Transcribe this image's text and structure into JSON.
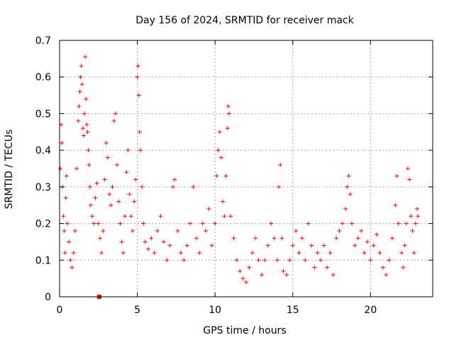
{
  "chart_data": {
    "type": "scatter",
    "title": "Day 156 of 2024, SRMTID for receiver mack",
    "xlabel": "GPS time / hours",
    "ylabel": "SRMTID / TECUs",
    "xlim": [
      0,
      24
    ],
    "ylim": [
      0,
      0.7
    ],
    "xticks": [
      0,
      5,
      10,
      15,
      20
    ],
    "xtick_labels": [
      "0",
      "5",
      "10",
      "15",
      "20"
    ],
    "yticks": [
      0,
      0.1,
      0.2,
      0.3,
      0.4,
      0.5,
      0.6,
      0.7
    ],
    "ytick_labels": [
      "0",
      "0.1",
      "0.2",
      "0.3",
      "0.4",
      "0.5",
      "0.6",
      "0.7"
    ],
    "grid": true,
    "marker": "plus",
    "color": "#ff0000",
    "series": [
      {
        "name": "SRMTID",
        "points": [
          [
            0.05,
            0.35
          ],
          [
            0.1,
            0.47
          ],
          [
            0.15,
            0.42
          ],
          [
            0.2,
            0.3
          ],
          [
            0.25,
            0.22
          ],
          [
            0.3,
            0.18
          ],
          [
            0.35,
            0.12
          ],
          [
            0.4,
            0.27
          ],
          [
            0.45,
            0.33
          ],
          [
            0.5,
            0.2
          ],
          [
            0.6,
            0.15
          ],
          [
            0.7,
            0.1
          ],
          [
            0.8,
            0.08
          ],
          [
            0.9,
            0.12
          ],
          [
            1.0,
            0.18
          ],
          [
            1.1,
            0.35
          ],
          [
            1.2,
            0.48
          ],
          [
            1.25,
            0.52
          ],
          [
            1.3,
            0.56
          ],
          [
            1.35,
            0.6
          ],
          [
            1.4,
            0.63
          ],
          [
            1.45,
            0.58
          ],
          [
            1.5,
            0.46
          ],
          [
            1.55,
            0.44
          ],
          [
            1.6,
            0.5
          ],
          [
            1.65,
            0.655
          ],
          [
            1.7,
            0.54
          ],
          [
            1.75,
            0.47
          ],
          [
            1.8,
            0.45
          ],
          [
            1.85,
            0.4
          ],
          [
            1.9,
            0.36
          ],
          [
            1.95,
            0.3
          ],
          [
            2.0,
            0.25
          ],
          [
            2.1,
            0.22
          ],
          [
            2.2,
            0.2
          ],
          [
            2.3,
            0.27
          ],
          [
            2.4,
            0.31
          ],
          [
            2.5,
            0.2
          ],
          [
            2.6,
            0.16
          ],
          [
            2.7,
            0.12
          ],
          [
            2.8,
            0.18
          ],
          [
            2.9,
            0.32
          ],
          [
            3.0,
            0.42
          ],
          [
            3.1,
            0.38
          ],
          [
            3.2,
            0.28
          ],
          [
            3.3,
            0.25
          ],
          [
            3.4,
            0.3
          ],
          [
            3.5,
            0.48
          ],
          [
            3.6,
            0.5
          ],
          [
            3.7,
            0.36
          ],
          [
            3.8,
            0.26
          ],
          [
            3.9,
            0.2
          ],
          [
            4.0,
            0.15
          ],
          [
            4.1,
            0.12
          ],
          [
            4.2,
            0.22
          ],
          [
            4.3,
            0.34
          ],
          [
            4.4,
            0.4
          ],
          [
            4.5,
            0.28
          ],
          [
            4.6,
            0.22
          ],
          [
            4.7,
            0.18
          ],
          [
            4.8,
            0.26
          ],
          [
            4.9,
            0.32
          ],
          [
            5.0,
            0.6
          ],
          [
            5.05,
            0.63
          ],
          [
            5.1,
            0.55
          ],
          [
            5.15,
            0.45
          ],
          [
            5.2,
            0.4
          ],
          [
            5.3,
            0.3
          ],
          [
            5.4,
            0.2
          ],
          [
            5.5,
            0.15
          ],
          [
            5.7,
            0.13
          ],
          [
            5.9,
            0.16
          ],
          [
            6.1,
            0.12
          ],
          [
            6.3,
            0.18
          ],
          [
            6.5,
            0.22
          ],
          [
            6.7,
            0.15
          ],
          [
            6.9,
            0.1
          ],
          [
            7.1,
            0.14
          ],
          [
            7.3,
            0.3
          ],
          [
            7.4,
            0.32
          ],
          [
            7.6,
            0.18
          ],
          [
            7.8,
            0.12
          ],
          [
            8.0,
            0.1
          ],
          [
            8.2,
            0.14
          ],
          [
            8.4,
            0.2
          ],
          [
            8.6,
            0.3
          ],
          [
            8.8,
            0.16
          ],
          [
            9.0,
            0.12
          ],
          [
            9.2,
            0.2
          ],
          [
            9.4,
            0.18
          ],
          [
            9.6,
            0.24
          ],
          [
            9.8,
            0.14
          ],
          [
            10.0,
            0.2
          ],
          [
            10.1,
            0.33
          ],
          [
            10.2,
            0.4
          ],
          [
            10.3,
            0.45
          ],
          [
            10.4,
            0.38
          ],
          [
            10.5,
            0.26
          ],
          [
            10.6,
            0.22
          ],
          [
            10.7,
            0.33
          ],
          [
            10.8,
            0.46
          ],
          [
            10.85,
            0.52
          ],
          [
            10.9,
            0.5
          ],
          [
            11.0,
            0.22
          ],
          [
            11.2,
            0.16
          ],
          [
            11.4,
            0.1
          ],
          [
            11.6,
            0.07
          ],
          [
            11.8,
            0.05
          ],
          [
            12.0,
            0.04
          ],
          [
            12.2,
            0.08
          ],
          [
            12.4,
            0.12
          ],
          [
            12.6,
            0.16
          ],
          [
            12.8,
            0.1
          ],
          [
            13.0,
            0.06
          ],
          [
            13.2,
            0.1
          ],
          [
            13.4,
            0.14
          ],
          [
            13.6,
            0.2
          ],
          [
            13.8,
            0.16
          ],
          [
            14.0,
            0.1
          ],
          [
            14.1,
            0.3
          ],
          [
            14.2,
            0.36
          ],
          [
            14.3,
            0.16
          ],
          [
            14.4,
            0.07
          ],
          [
            14.6,
            0.06
          ],
          [
            14.8,
            0.1
          ],
          [
            15.0,
            0.14
          ],
          [
            15.2,
            0.18
          ],
          [
            15.4,
            0.12
          ],
          [
            15.6,
            0.16
          ],
          [
            15.8,
            0.1
          ],
          [
            16.0,
            0.2
          ],
          [
            16.2,
            0.14
          ],
          [
            16.4,
            0.08
          ],
          [
            16.6,
            0.12
          ],
          [
            16.8,
            0.1
          ],
          [
            17.0,
            0.14
          ],
          [
            17.2,
            0.08
          ],
          [
            17.4,
            0.12
          ],
          [
            17.6,
            0.06
          ],
          [
            17.8,
            0.16
          ],
          [
            18.0,
            0.18
          ],
          [
            18.2,
            0.2
          ],
          [
            18.4,
            0.24
          ],
          [
            18.5,
            0.3
          ],
          [
            18.6,
            0.33
          ],
          [
            18.7,
            0.28
          ],
          [
            18.8,
            0.2
          ],
          [
            19.0,
            0.14
          ],
          [
            19.2,
            0.16
          ],
          [
            19.4,
            0.18
          ],
          [
            19.6,
            0.12
          ],
          [
            19.8,
            0.15
          ],
          [
            20.0,
            0.1
          ],
          [
            20.2,
            0.14
          ],
          [
            20.4,
            0.17
          ],
          [
            20.6,
            0.12
          ],
          [
            20.8,
            0.08
          ],
          [
            21.0,
            0.06
          ],
          [
            21.2,
            0.1
          ],
          [
            21.4,
            0.16
          ],
          [
            21.6,
            0.25
          ],
          [
            21.7,
            0.33
          ],
          [
            21.8,
            0.2
          ],
          [
            22.0,
            0.12
          ],
          [
            22.1,
            0.08
          ],
          [
            22.2,
            0.14
          ],
          [
            22.3,
            0.2
          ],
          [
            22.4,
            0.35
          ],
          [
            22.5,
            0.32
          ],
          [
            22.6,
            0.22
          ],
          [
            22.7,
            0.18
          ],
          [
            22.8,
            0.12
          ],
          [
            22.9,
            0.2
          ],
          [
            23.0,
            0.24
          ],
          [
            23.05,
            0.22
          ]
        ]
      }
    ],
    "marker_square": {
      "x": 2.55,
      "y": 0.0
    }
  }
}
